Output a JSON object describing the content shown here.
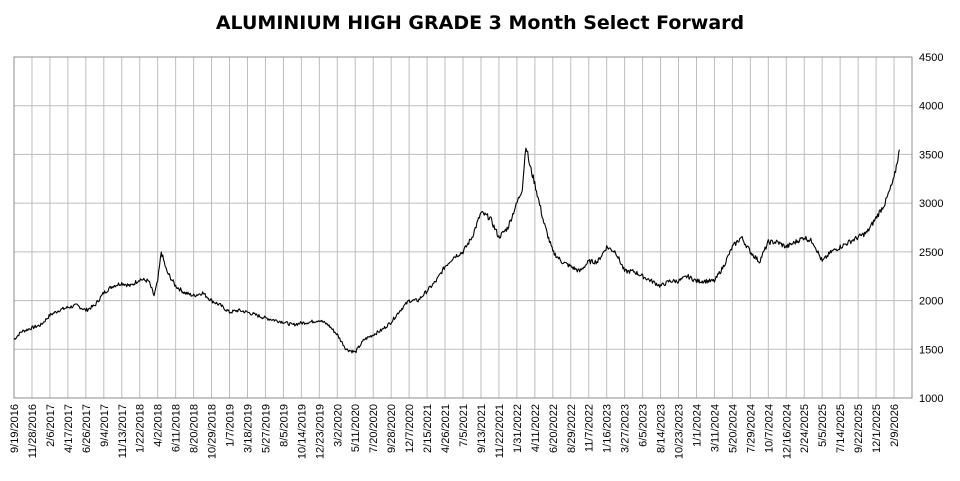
{
  "chart_data": {
    "type": "line",
    "title": "ALUMINIUM HIGH GRADE 3 Month Select Forward",
    "xlabel": "",
    "ylabel": "",
    "ylim": [
      1000,
      4500
    ],
    "yticks": [
      1000,
      1500,
      2000,
      2500,
      3000,
      3500,
      4000,
      4500
    ],
    "y_axis_side": "right",
    "grid": true,
    "legend": "none",
    "line_color": "#000000",
    "xtick_labels": [
      "9/19/2016",
      "11/28/2016",
      "2/6/2017",
      "4/17/2017",
      "6/26/2017",
      "9/4/2017",
      "11/13/2017",
      "1/22/2018",
      "4/2/2018",
      "6/11/2018",
      "8/20/2018",
      "10/29/2018",
      "1/7/2019",
      "3/18/2019",
      "5/27/2019",
      "8/5/2019",
      "10/14/2019",
      "12/23/2019",
      "3/2/2020",
      "5/11/2020",
      "7/20/2020",
      "9/28/2020",
      "12/7/2020",
      "2/15/2021",
      "4/26/2021",
      "7/5/2021",
      "9/13/2021",
      "11/22/2021",
      "1/31/2022",
      "4/11/2022",
      "6/20/2022",
      "8/29/2022",
      "11/7/2022",
      "1/16/2023",
      "3/27/2023",
      "6/5/2023",
      "8/14/2023",
      "10/23/2023",
      "1/1/2024",
      "3/11/2024",
      "5/20/2024",
      "7/29/2024",
      "10/7/2024",
      "12/16/2024",
      "2/24/2025",
      "5/5/2025",
      "7/14/2025",
      "9/22/2025",
      "12/1/2025",
      "2/9/2026"
    ],
    "series": [
      {
        "x": [
          "9/19/2016",
          "10/17/2016",
          "11/28/2016",
          "1/2/2017",
          "2/6/2017",
          "3/13/2017",
          "4/17/2017",
          "5/22/2017",
          "6/26/2017",
          "7/31/2017",
          "9/4/2017",
          "10/9/2017",
          "11/13/2017",
          "12/18/2017",
          "1/22/2018",
          "2/26/2018",
          "3/19/2018",
          "4/2/2018",
          "4/16/2018",
          "5/7/2018",
          "6/11/2018",
          "7/16/2018",
          "8/20/2018",
          "9/24/2018",
          "10/29/2018",
          "12/3/2018",
          "1/7/2019",
          "2/11/2019",
          "3/18/2019",
          "4/22/2019",
          "5/27/2019",
          "7/1/2019",
          "8/5/2019",
          "9/9/2019",
          "10/14/2019",
          "11/18/2019",
          "12/23/2019",
          "1/27/2020",
          "3/2/2020",
          "4/6/2020",
          "5/11/2020",
          "6/15/2020",
          "7/20/2020",
          "8/24/2020",
          "9/28/2020",
          "11/2/2020",
          "12/7/2020",
          "1/11/2021",
          "2/15/2021",
          "3/22/2021",
          "4/26/2021",
          "5/31/2021",
          "7/5/2021",
          "8/9/2021",
          "9/13/2021",
          "10/18/2021",
          "11/22/2021",
          "12/27/2021",
          "1/31/2022",
          "2/21/2022",
          "3/7/2022",
          "3/21/2022",
          "4/11/2022",
          "5/16/2022",
          "6/20/2022",
          "7/25/2022",
          "8/29/2022",
          "10/3/2022",
          "11/7/2022",
          "12/12/2022",
          "1/16/2023",
          "2/20/2023",
          "3/27/2023",
          "5/1/2023",
          "6/5/2023",
          "7/10/2023",
          "8/14/2023",
          "9/18/2023",
          "10/23/2023",
          "11/27/2023",
          "1/1/2024",
          "2/5/2024",
          "3/11/2024",
          "4/15/2024",
          "5/20/2024",
          "6/24/2024",
          "7/29/2024",
          "9/2/2024",
          "10/7/2024",
          "11/11/2024",
          "12/16/2024",
          "1/20/2025",
          "2/24/2025",
          "3/31/2025",
          "5/5/2025",
          "6/9/2025",
          "7/14/2025",
          "8/18/2025",
          "9/22/2025",
          "10/27/2025",
          "12/1/2025",
          "1/5/2026",
          "2/9/2026",
          "3/2/2026"
        ],
        "values": [
          1600,
          1680,
          1720,
          1750,
          1850,
          1900,
          1930,
          1950,
          1900,
          1950,
          2080,
          2150,
          2180,
          2150,
          2220,
          2200,
          2050,
          2200,
          2500,
          2300,
          2150,
          2080,
          2050,
          2080,
          2000,
          1950,
          1880,
          1900,
          1880,
          1850,
          1820,
          1800,
          1780,
          1750,
          1770,
          1780,
          1800,
          1750,
          1650,
          1500,
          1470,
          1600,
          1650,
          1700,
          1780,
          1900,
          2000,
          2000,
          2100,
          2200,
          2350,
          2450,
          2500,
          2650,
          2900,
          2850,
          2650,
          2750,
          3000,
          3150,
          3600,
          3400,
          3200,
          2800,
          2500,
          2400,
          2350,
          2300,
          2400,
          2400,
          2550,
          2500,
          2300,
          2300,
          2250,
          2200,
          2150,
          2200,
          2200,
          2250,
          2200,
          2200,
          2200,
          2350,
          2550,
          2650,
          2500,
          2400,
          2600,
          2600,
          2550,
          2600,
          2650,
          2600,
          2400,
          2500,
          2550,
          2600,
          2650,
          2700,
          2850,
          3000,
          3250,
          3550
        ]
      }
    ]
  }
}
